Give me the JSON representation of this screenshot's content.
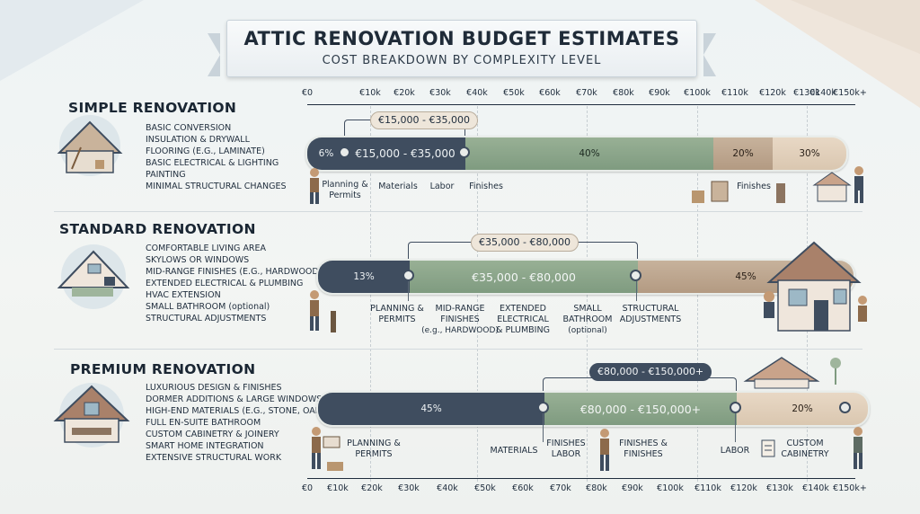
{
  "title": "ATTIC RENOVATION BUDGET ESTIMATES",
  "subtitle": "COST BREAKDOWN BY COMPLEXITY LEVEL",
  "axis_ticks": [
    "€0",
    "€10k",
    "€20k",
    "€30k",
    "€40k",
    "€50k",
    "€60k",
    "€70k",
    "€80k",
    "€90k",
    "€100k",
    "€110k",
    "€120k",
    "€130k",
    "€140k",
    "€150k+"
  ],
  "colors": {
    "dark": "#3f4d5f",
    "green": "#8ea78b",
    "tan": "#c2ab94",
    "light": "#e6d5c1"
  },
  "sections": [
    {
      "title": "SIMPLE RENOVATION",
      "features": [
        "Basic conversion",
        "Insulation & drywall",
        "Flooring (e.g., laminate)",
        "Basic electrical & lighting",
        "Painting",
        "Minimal structural changes"
      ],
      "range": "€15,000 - €35,000",
      "bar": [
        {
          "label": "6%",
          "value": 6
        },
        {
          "label": "€15,000 - €35,000",
          "value": 0
        },
        {
          "label": "40%",
          "value": 40
        },
        {
          "label": "20%",
          "value": 20
        },
        {
          "label": "30%",
          "value": 30
        }
      ],
      "categories": [
        "Planning & Permits",
        "Materials",
        "Labor",
        "Finishes",
        "Finishes"
      ]
    },
    {
      "title": "STANDARD RENOVATION",
      "features": [
        "Comfortable living area",
        "Skylows or windows",
        "Mid-range finishes (e.g., hardwood)",
        "Extended electrical & plumbing",
        "HVAC extension",
        "Small bathroom",
        "(optional)",
        "Structural adjustments"
      ],
      "range": "€35,000 - €80,000",
      "bar": [
        {
          "label": "13%",
          "value": 13
        },
        {
          "label": "€35,000 - €80,000",
          "value": 0
        },
        {
          "label": "45%",
          "value": 45
        }
      ],
      "categories": [
        {
          "main": "Planning & Permits",
          "note": ""
        },
        {
          "main": "Mid-range finishes",
          "note": "(e.g., HARDWOOD)"
        },
        {
          "main": "Extended electrical & plumbing",
          "note": ""
        },
        {
          "main": "Small bathroom",
          "note": "(optional)"
        },
        {
          "main": "Structural adjustments",
          "note": ""
        }
      ]
    },
    {
      "title": "PREMIUM RENOVATION",
      "features": [
        "Luxurious design & finishes",
        "Dormer additions & large windows",
        "High-end materials (e.g., stone, oak)",
        "Full en-suite bathroom",
        "Custom cabinetry & joinery",
        "Smart home integration",
        "Extensive structural work"
      ],
      "range": "€80,000 - €150,000+",
      "bar": [
        {
          "label": "45%",
          "value": 45
        },
        {
          "label": "€80,000 - €150,000+",
          "value": 0
        },
        {
          "label": "20%",
          "value": 20
        }
      ],
      "categories": [
        "Planning & Permits",
        "Materials",
        "Finishes labor",
        "Finishes & finishes",
        "Labor",
        "Custom cabinetry"
      ]
    }
  ]
}
